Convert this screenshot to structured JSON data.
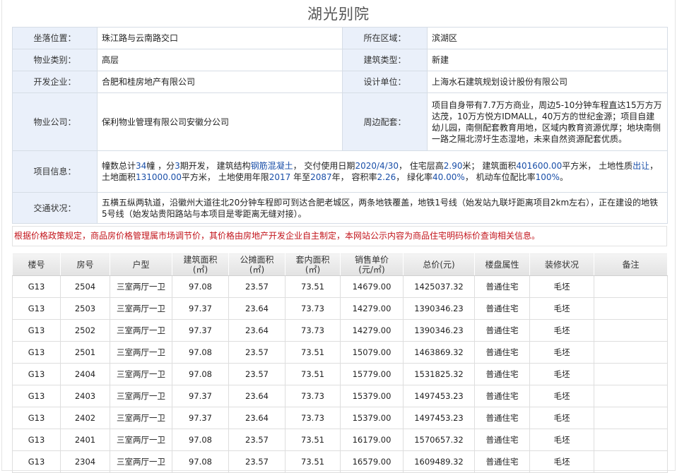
{
  "title": "湖光别院",
  "info": {
    "location_label": "坐落位置：",
    "location": "珠江路与云南路交口",
    "district_label": "所在区域：",
    "district": "滨湖区",
    "property_type_label": "物业类别：",
    "property_type": "高层",
    "building_type_label": "建筑类型：",
    "building_type": "新建",
    "developer_label": "开发企业：",
    "developer": "合肥和桂房地产有限公司",
    "designer_label": "设计单位：",
    "designer": "上海水石建筑规划设计股份有限公司",
    "property_company_label": "物业公司：",
    "property_company": "保利物业管理有限公司安徽分公司",
    "surroundings_label": "周边配套：",
    "surroundings": "项目自身带有7.7万方商业，周边5-10分钟车程直达15万方万达茂，10万方悦方IDMALL，40万方的世纪金源；项目自建幼儿园，南侧配套教育用地，区域内教育资源优厚；地块南侧一路之隔北涝圩生态湿地，未来自然资源配套优质。",
    "project_info_label": "项目信息：",
    "project_info": [
      {
        "t": "幢数总计",
        "hl": false
      },
      {
        "t": "34",
        "hl": true
      },
      {
        "t": "幢 ，分",
        "hl": false
      },
      {
        "t": "3",
        "hl": true
      },
      {
        "t": "期开发， 建筑结构",
        "hl": false
      },
      {
        "t": "钢筋混凝土",
        "hl": true
      },
      {
        "t": "， 交付使用日期",
        "hl": false
      },
      {
        "t": "2020/4/30",
        "hl": true
      },
      {
        "t": "， 住宅层高",
        "hl": false
      },
      {
        "t": "2.90",
        "hl": true
      },
      {
        "t": "米； 建筑面积",
        "hl": false
      },
      {
        "t": "401600.00",
        "hl": true
      },
      {
        "t": "平方米， 土地性质",
        "hl": false
      },
      {
        "t": "出让",
        "hl": true
      },
      {
        "t": "， 土地面积",
        "hl": false
      },
      {
        "t": "131000.00",
        "hl": true
      },
      {
        "t": "平方米， 土地使用年限",
        "hl": false
      },
      {
        "t": "2017",
        "hl": true
      },
      {
        "t": " 年至",
        "hl": false
      },
      {
        "t": "2087",
        "hl": true
      },
      {
        "t": "年， 容积率",
        "hl": false
      },
      {
        "t": "2.26",
        "hl": true
      },
      {
        "t": "， 绿化率",
        "hl": false
      },
      {
        "t": "40.00%",
        "hl": true
      },
      {
        "t": "， 机动车位配比率",
        "hl": false
      },
      {
        "t": "100%",
        "hl": true
      },
      {
        "t": "。",
        "hl": false
      }
    ],
    "traffic_label": "交通状况：",
    "traffic": "五横五纵两轨道，沿徽州大道往北20分钟车程即可到达合肥老城区，两条地铁覆盖，地铁1号线（始发站九联圩距离项目2km左右），正在建设的地铁5号线（始发站贵阳路站与本项目是零距离无缝对接）。"
  },
  "notice": "根据价格政策规定，商品房价格管理属市场调节价，其价格由房地产开发企业自主制定，本网站公示内容为商品住宅明码标价查询相关信息。",
  "units": {
    "headers": [
      "楼号",
      "房号",
      "户型",
      "建筑面积\n(㎡)",
      "公摊面积\n(㎡)",
      "套内面积\n(㎡)",
      "销售单价\n(元/㎡)",
      "总价(元)",
      "楼盘属性",
      "装修状况",
      "备注"
    ],
    "rows": [
      [
        "G13",
        "2504",
        "三室两厅一卫",
        "97.08",
        "23.57",
        "73.51",
        "14679.00",
        "1425037.32",
        "普通住宅",
        "毛坯",
        ""
      ],
      [
        "G13",
        "2503",
        "三室两厅一卫",
        "97.37",
        "23.64",
        "73.73",
        "14279.00",
        "1390346.23",
        "普通住宅",
        "毛坯",
        ""
      ],
      [
        "G13",
        "2502",
        "三室两厅一卫",
        "97.37",
        "23.64",
        "73.73",
        "14279.00",
        "1390346.23",
        "普通住宅",
        "毛坯",
        ""
      ],
      [
        "G13",
        "2501",
        "三室两厅一卫",
        "97.08",
        "23.57",
        "73.51",
        "15079.00",
        "1463869.32",
        "普通住宅",
        "毛坯",
        ""
      ],
      [
        "G13",
        "2404",
        "三室两厅一卫",
        "97.08",
        "23.57",
        "73.51",
        "15779.00",
        "1531825.32",
        "普通住宅",
        "毛坯",
        ""
      ],
      [
        "G13",
        "2403",
        "三室两厅一卫",
        "97.37",
        "23.64",
        "73.73",
        "15379.00",
        "1497453.23",
        "普通住宅",
        "毛坯",
        ""
      ],
      [
        "G13",
        "2402",
        "三室两厅一卫",
        "97.37",
        "23.64",
        "73.73",
        "15379.00",
        "1497453.23",
        "普通住宅",
        "毛坯",
        ""
      ],
      [
        "G13",
        "2401",
        "三室两厅一卫",
        "97.08",
        "23.57",
        "73.51",
        "16179.00",
        "1570657.32",
        "普通住宅",
        "毛坯",
        ""
      ],
      [
        "G13",
        "2304",
        "三室两厅一卫",
        "97.08",
        "23.57",
        "73.51",
        "16579.00",
        "1609489.32",
        "普通住宅",
        "毛坯",
        ""
      ]
    ]
  },
  "colors": {
    "label_bg": "#eaf0fa",
    "highlight": "#1a4fa8",
    "notice": "#c2141b"
  }
}
